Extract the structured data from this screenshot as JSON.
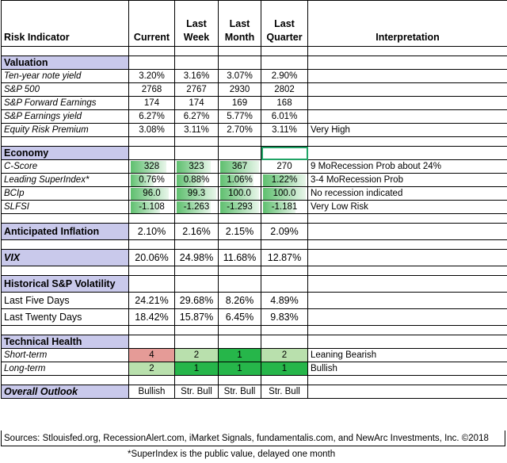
{
  "headers": {
    "indicator": "Risk Indicator",
    "current": "Current",
    "last_week": [
      "Last",
      "Week"
    ],
    "last_month": [
      "Last",
      "Month"
    ],
    "last_quarter": [
      "Last",
      "Quarter"
    ],
    "interpretation": "Interpretation"
  },
  "valuation": {
    "title": "Valuation",
    "rows": [
      {
        "label": "Ten-year note yield",
        "v": [
          "3.20%",
          "3.16%",
          "3.07%",
          "2.90%"
        ],
        "interp": ""
      },
      {
        "label": "S&P 500",
        "v": [
          "2768",
          "2767",
          "2930",
          "2802"
        ],
        "interp": ""
      },
      {
        "label": "S&P Forward Earnings",
        "v": [
          "174",
          "174",
          "169",
          "168"
        ],
        "interp": ""
      },
      {
        "label": "S&P Earnings yield",
        "v": [
          "6.27%",
          "6.27%",
          "5.77%",
          "6.01%"
        ],
        "interp": ""
      },
      {
        "label": "Equity Risk Premium",
        "v": [
          "3.08%",
          "3.11%",
          "2.70%",
          "3.11%"
        ],
        "interp": "Very High"
      }
    ]
  },
  "economy": {
    "title": "Economy",
    "rows": [
      {
        "label": "C-Score",
        "v": [
          "328",
          "323",
          "367",
          "270"
        ],
        "fill": [
          0.85,
          0.85,
          1.0,
          0.0
        ],
        "interp": "9 MoRecession Prob about 24%"
      },
      {
        "label": "Leading SuperIndex*",
        "v": [
          "0.76%",
          "0.88%",
          "1.06%",
          "1.22%"
        ],
        "fill": [
          0.55,
          0.7,
          0.85,
          1.0
        ],
        "interp": "3-4 MoRecession Prob"
      },
      {
        "label": "BCIp",
        "v": [
          "96.0",
          "99.3",
          "100.0",
          "100.0"
        ],
        "fill": [
          0.9,
          1.0,
          1.0,
          1.0
        ],
        "interp": "No recession indicated"
      },
      {
        "label": "SLFSI",
        "v": [
          "-1.108",
          "-1.263",
          "-1.293",
          "-1.181"
        ],
        "fill": [
          0.7,
          0.85,
          1.0,
          0.75
        ],
        "interp": "Very Low Risk"
      }
    ]
  },
  "inflation": {
    "label": "Anticipated Inflation",
    "v": [
      "2.10%",
      "2.16%",
      "2.15%",
      "2.09%"
    ]
  },
  "vix": {
    "label": "VIX",
    "v": [
      "20.06%",
      "24.98%",
      "11.68%",
      "12.87%"
    ]
  },
  "volatility": {
    "title": "Historical  S&P Volatility",
    "rows": [
      {
        "label": "Last Five Days",
        "v": [
          "24.21%",
          "29.68%",
          "8.26%",
          "4.89%"
        ]
      },
      {
        "label": "Last Twenty Days",
        "v": [
          "18.42%",
          "15.87%",
          "6.45%",
          "9.83%"
        ]
      }
    ]
  },
  "technical": {
    "title": "Technical Health",
    "rows": [
      {
        "label": "Short-term",
        "v": [
          "4",
          "2",
          "1",
          "2"
        ],
        "colors": [
          "#e59b97",
          "#b9e0ad",
          "#26b64a",
          "#b9e0ad"
        ],
        "interp": "Leaning Bearish"
      },
      {
        "label": "Long-term",
        "v": [
          "2",
          "1",
          "1",
          "1"
        ],
        "colors": [
          "#b9e0ad",
          "#26b64a",
          "#26b64a",
          "#26b64a"
        ],
        "interp": "Bullish"
      }
    ]
  },
  "outlook": {
    "label": "Overall Outlook",
    "v": [
      "Bullish",
      "Str. Bull",
      "Str. Bull",
      "Str. Bull"
    ]
  },
  "footer": {
    "sources": "Sources: Stlouisfed.org, RecessionAlert.com, iMarket Signals, fundamentalis.com, and NewArc Investments, Inc. ©2018",
    "note": "*SuperIndex is the public value, delayed one month"
  }
}
